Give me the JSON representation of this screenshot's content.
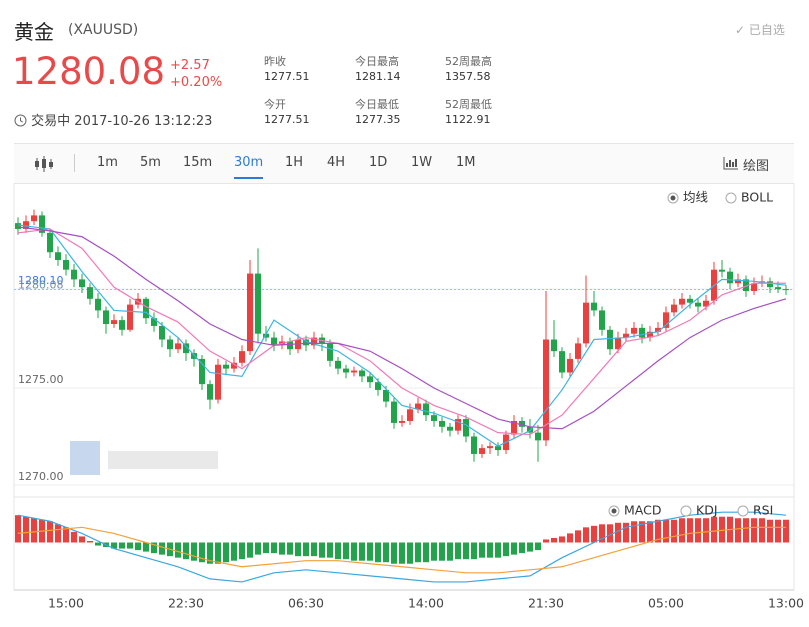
{
  "header": {
    "name": "黄金",
    "code": "(XAUUSD)",
    "price": 1280.08,
    "change": "+2.57",
    "change_pct": "+0.20%",
    "status": "交易中",
    "time": "2017-10-26 13:12:23",
    "watch": "已自选"
  },
  "stats": [
    {
      "label": "昨收",
      "value": 1277.51
    },
    {
      "label": "今日最高",
      "value": 1281.14
    },
    {
      "label": "52周最高",
      "value": 1357.58
    },
    {
      "label": "今开",
      "value": 1277.51
    },
    {
      "label": "今日最低",
      "value": 1277.35
    },
    {
      "label": "52周最低",
      "value": 1122.91
    }
  ],
  "toolbar": {
    "tabs": [
      "1m",
      "5m",
      "15m",
      "30m",
      "1H",
      "4H",
      "1D",
      "1W",
      "1M"
    ],
    "draw": "绘图"
  },
  "chart_data": {
    "type": "candlestick",
    "up_color": "#e8413f",
    "down_color": "#22a34c",
    "ylim": [
      1269.38,
      1285.57
    ],
    "yticks": [
      {
        "value": 1270,
        "label": "1270.00"
      },
      {
        "value": 1275,
        "label": "1275.00"
      },
      {
        "value": 1280.1,
        "label": "1280.10"
      }
    ],
    "price_line": {
      "value": 1280.08,
      "label": "1280.08"
    },
    "xticks": [
      {
        "index": 6,
        "label": "15:00"
      },
      {
        "index": 21,
        "label": "22:30"
      },
      {
        "index": 36,
        "label": "06:30"
      },
      {
        "index": 51,
        "label": "14:00"
      },
      {
        "index": 66,
        "label": "21:30"
      },
      {
        "index": 81,
        "label": "05:00"
      },
      {
        "index": 96,
        "label": "13:00"
      }
    ],
    "ohlc": [
      [
        1283.5,
        1283.8,
        1282.9,
        1283.2
      ],
      [
        1283.2,
        1283.9,
        1283.0,
        1283.6
      ],
      [
        1283.6,
        1284.2,
        1283.4,
        1283.9
      ],
      [
        1283.9,
        1284.1,
        1282.8,
        1283.0
      ],
      [
        1283.0,
        1283.2,
        1281.7,
        1282.0
      ],
      [
        1282.0,
        1282.3,
        1281.3,
        1281.6
      ],
      [
        1281.6,
        1281.9,
        1280.8,
        1281.1
      ],
      [
        1281.1,
        1281.4,
        1280.2,
        1280.6
      ],
      [
        1280.6,
        1280.9,
        1279.9,
        1280.2
      ],
      [
        1280.2,
        1280.4,
        1279.3,
        1279.6
      ],
      [
        1279.6,
        1279.9,
        1278.6,
        1279.0
      ],
      [
        1279.0,
        1279.2,
        1277.8,
        1278.3
      ],
      [
        1278.3,
        1278.8,
        1278.1,
        1278.5
      ],
      [
        1278.5,
        1278.7,
        1277.7,
        1278.0
      ],
      [
        1278.0,
        1279.6,
        1277.9,
        1279.3
      ],
      [
        1279.3,
        1279.9,
        1279.1,
        1279.6
      ],
      [
        1279.6,
        1279.7,
        1278.3,
        1278.6
      ],
      [
        1278.6,
        1278.9,
        1277.9,
        1278.2
      ],
      [
        1278.2,
        1278.4,
        1277.1,
        1277.5
      ],
      [
        1277.5,
        1277.7,
        1276.6,
        1277.0
      ],
      [
        1277.0,
        1277.6,
        1276.8,
        1277.3
      ],
      [
        1277.3,
        1277.5,
        1276.4,
        1276.8
      ],
      [
        1276.8,
        1277.0,
        1276.1,
        1276.5
      ],
      [
        1276.5,
        1276.7,
        1274.9,
        1275.2
      ],
      [
        1275.2,
        1275.4,
        1273.9,
        1274.4
      ],
      [
        1274.4,
        1276.5,
        1274.2,
        1276.2
      ],
      [
        1276.2,
        1276.4,
        1275.7,
        1276.0
      ],
      [
        1276.0,
        1276.6,
        1275.8,
        1276.3
      ],
      [
        1276.3,
        1277.2,
        1276.1,
        1276.9
      ],
      [
        1276.9,
        1281.6,
        1276.7,
        1280.9
      ],
      [
        1280.9,
        1282.2,
        1277.3,
        1277.8
      ],
      [
        1277.8,
        1278.2,
        1277.4,
        1277.6
      ],
      [
        1277.6,
        1277.9,
        1276.9,
        1277.2
      ],
      [
        1277.2,
        1277.7,
        1277.0,
        1277.4
      ],
      [
        1277.4,
        1277.6,
        1276.7,
        1277.0
      ],
      [
        1277.0,
        1277.8,
        1276.8,
        1277.5
      ],
      [
        1277.5,
        1277.7,
        1276.9,
        1277.2
      ],
      [
        1277.2,
        1277.9,
        1277.0,
        1277.6
      ],
      [
        1277.6,
        1277.8,
        1276.9,
        1277.3
      ],
      [
        1277.3,
        1277.5,
        1276.1,
        1276.4
      ],
      [
        1276.4,
        1276.6,
        1275.7,
        1276.0
      ],
      [
        1276.0,
        1276.2,
        1275.5,
        1275.8
      ],
      [
        1275.8,
        1276.1,
        1275.6,
        1275.9
      ],
      [
        1275.9,
        1276.0,
        1275.3,
        1275.6
      ],
      [
        1275.6,
        1275.8,
        1275.0,
        1275.3
      ],
      [
        1275.3,
        1275.5,
        1274.6,
        1274.9
      ],
      [
        1274.9,
        1275.1,
        1274.0,
        1274.3
      ],
      [
        1274.3,
        1274.5,
        1272.9,
        1273.2
      ],
      [
        1273.2,
        1273.6,
        1273.0,
        1273.3
      ],
      [
        1273.3,
        1274.2,
        1273.1,
        1273.9
      ],
      [
        1273.9,
        1274.5,
        1273.7,
        1274.2
      ],
      [
        1274.2,
        1274.4,
        1273.3,
        1273.6
      ],
      [
        1273.6,
        1273.8,
        1273.0,
        1273.3
      ],
      [
        1273.3,
        1273.5,
        1272.7,
        1273.0
      ],
      [
        1273.0,
        1273.2,
        1272.5,
        1272.8
      ],
      [
        1272.8,
        1273.6,
        1272.6,
        1273.4
      ],
      [
        1273.4,
        1273.6,
        1272.2,
        1272.5
      ],
      [
        1272.5,
        1272.7,
        1271.2,
        1271.6
      ],
      [
        1271.6,
        1272.1,
        1271.4,
        1271.9
      ],
      [
        1271.9,
        1272.2,
        1271.6,
        1272.0
      ],
      [
        1272.0,
        1272.2,
        1271.5,
        1271.8
      ],
      [
        1271.8,
        1272.8,
        1271.6,
        1272.6
      ],
      [
        1272.6,
        1273.6,
        1272.4,
        1273.3
      ],
      [
        1273.3,
        1273.5,
        1272.7,
        1273.0
      ],
      [
        1273.0,
        1273.4,
        1272.4,
        1272.7
      ],
      [
        1272.7,
        1273.1,
        1271.2,
        1272.3
      ],
      [
        1272.3,
        1280.0,
        1272.0,
        1277.5
      ],
      [
        1277.5,
        1278.5,
        1276.6,
        1276.9
      ],
      [
        1276.9,
        1277.1,
        1275.5,
        1275.8
      ],
      [
        1275.8,
        1276.8,
        1275.6,
        1276.5
      ],
      [
        1276.5,
        1277.6,
        1276.3,
        1277.3
      ],
      [
        1277.3,
        1280.8,
        1277.1,
        1279.4
      ],
      [
        1279.4,
        1280.0,
        1278.7,
        1279.0
      ],
      [
        1279.0,
        1279.2,
        1277.7,
        1278.0
      ],
      [
        1278.0,
        1278.2,
        1276.7,
        1277.0
      ],
      [
        1277.0,
        1277.9,
        1276.8,
        1277.6
      ],
      [
        1277.6,
        1278.1,
        1277.4,
        1277.8
      ],
      [
        1277.8,
        1278.4,
        1277.6,
        1278.1
      ],
      [
        1278.1,
        1278.3,
        1277.3,
        1277.6
      ],
      [
        1277.6,
        1278.2,
        1277.4,
        1277.9
      ],
      [
        1277.9,
        1278.4,
        1277.7,
        1278.1
      ],
      [
        1278.1,
        1279.2,
        1277.9,
        1278.9
      ],
      [
        1278.9,
        1279.6,
        1278.7,
        1279.3
      ],
      [
        1279.3,
        1279.9,
        1279.1,
        1279.6
      ],
      [
        1279.6,
        1279.8,
        1279.1,
        1279.4
      ],
      [
        1279.4,
        1279.6,
        1278.9,
        1279.2
      ],
      [
        1279.2,
        1279.8,
        1279.0,
        1279.5
      ],
      [
        1279.5,
        1281.5,
        1279.3,
        1281.1
      ],
      [
        1281.1,
        1281.6,
        1280.7,
        1281.0
      ],
      [
        1281.0,
        1281.2,
        1280.1,
        1280.4
      ],
      [
        1280.4,
        1280.9,
        1280.2,
        1280.6
      ],
      [
        1280.6,
        1280.8,
        1279.7,
        1280.0
      ],
      [
        1280.0,
        1280.7,
        1279.8,
        1280.4
      ],
      [
        1280.4,
        1280.8,
        1280.2,
        1280.5
      ],
      [
        1280.5,
        1280.7,
        1279.9,
        1280.2
      ],
      [
        1280.2,
        1280.5,
        1279.9,
        1280.1
      ],
      [
        1280.1,
        1280.3,
        1279.8,
        1280.08
      ]
    ],
    "overlay": {
      "options": [
        "均线",
        "BOLL"
      ],
      "series": [
        {
          "color": "#3cb6e0",
          "x": [
            0,
            4,
            8,
            12,
            16,
            20,
            24,
            28,
            32,
            36,
            40,
            44,
            48,
            52,
            56,
            60,
            64,
            68,
            72,
            76,
            80,
            84,
            88,
            92,
            96
          ],
          "values": [
            1283.4,
            1283.2,
            1281.0,
            1279.0,
            1278.9,
            1277.6,
            1275.8,
            1275.6,
            1278.5,
            1277.4,
            1276.9,
            1275.8,
            1274.1,
            1273.7,
            1273.1,
            1272.0,
            1272.8,
            1274.9,
            1277.5,
            1277.6,
            1277.9,
            1279.3,
            1280.6,
            1280.5,
            1280.3
          ]
        },
        {
          "color": "#f07ab9",
          "x": [
            0,
            4,
            8,
            12,
            16,
            20,
            24,
            28,
            32,
            36,
            40,
            44,
            48,
            52,
            56,
            60,
            64,
            68,
            72,
            76,
            80,
            84,
            88,
            92,
            96
          ],
          "values": [
            1283.0,
            1283.2,
            1282.2,
            1280.2,
            1279.2,
            1278.4,
            1276.9,
            1276.0,
            1277.2,
            1277.6,
            1277.3,
            1276.4,
            1275.0,
            1274.1,
            1273.5,
            1272.7,
            1272.6,
            1273.6,
            1275.5,
            1277.4,
            1277.7,
            1278.5,
            1279.8,
            1280.4,
            1280.4
          ]
        },
        {
          "color": "#a64fc2",
          "x": [
            0,
            4,
            8,
            12,
            16,
            20,
            24,
            28,
            32,
            36,
            40,
            44,
            48,
            52,
            56,
            60,
            64,
            68,
            72,
            76,
            80,
            84,
            88,
            92,
            96
          ],
          "values": [
            1283.3,
            1283.1,
            1282.8,
            1281.8,
            1280.6,
            1279.5,
            1278.3,
            1277.5,
            1277.2,
            1277.3,
            1277.3,
            1276.9,
            1276.0,
            1275.0,
            1274.2,
            1273.4,
            1273.0,
            1272.9,
            1273.8,
            1275.1,
            1276.4,
            1277.6,
            1278.5,
            1279.1,
            1279.6
          ]
        }
      ]
    },
    "indicator": {
      "options": [
        "MACD",
        "KDJ",
        "RSI"
      ],
      "ylim": [
        -1.5,
        1.5
      ],
      "histogram": [
        0.9,
        0.85,
        0.8,
        0.75,
        0.7,
        0.6,
        0.5,
        0.35,
        0.2,
        0.05,
        -0.1,
        -0.15,
        -0.2,
        -0.2,
        -0.2,
        -0.25,
        -0.3,
        -0.35,
        -0.4,
        -0.45,
        -0.5,
        -0.55,
        -0.6,
        -0.65,
        -0.7,
        -0.7,
        -0.65,
        -0.6,
        -0.55,
        -0.5,
        -0.4,
        -0.35,
        -0.35,
        -0.4,
        -0.4,
        -0.45,
        -0.45,
        -0.45,
        -0.5,
        -0.5,
        -0.55,
        -0.55,
        -0.6,
        -0.6,
        -0.6,
        -0.65,
        -0.65,
        -0.7,
        -0.7,
        -0.7,
        -0.65,
        -0.65,
        -0.6,
        -0.6,
        -0.6,
        -0.55,
        -0.55,
        -0.55,
        -0.5,
        -0.5,
        -0.5,
        -0.45,
        -0.4,
        -0.35,
        -0.3,
        -0.25,
        0.1,
        0.15,
        0.2,
        0.3,
        0.4,
        0.5,
        0.55,
        0.6,
        0.6,
        0.65,
        0.65,
        0.7,
        0.7,
        0.7,
        0.75,
        0.75,
        0.75,
        0.8,
        0.8,
        0.8,
        0.8,
        0.85,
        0.85,
        0.85,
        0.8,
        0.8,
        0.8,
        0.8,
        0.75,
        0.75,
        0.75
      ],
      "lines": [
        {
          "color": "#3aa7df",
          "x": [
            0,
            4,
            8,
            12,
            16,
            20,
            24,
            28,
            32,
            36,
            40,
            44,
            48,
            52,
            56,
            60,
            64,
            68,
            72,
            76,
            80,
            84,
            88,
            92,
            96
          ],
          "values": [
            0.9,
            0.7,
            0.3,
            -0.2,
            -0.5,
            -0.8,
            -1.2,
            -1.3,
            -1.0,
            -0.9,
            -1.0,
            -1.1,
            -1.2,
            -1.3,
            -1.3,
            -1.2,
            -1.1,
            -0.5,
            0.0,
            0.5,
            0.7,
            0.9,
            1.0,
            1.0,
            0.9
          ]
        },
        {
          "color": "#f2a23a",
          "x": [
            0,
            4,
            8,
            12,
            16,
            20,
            24,
            28,
            32,
            36,
            40,
            44,
            48,
            52,
            56,
            60,
            64,
            68,
            72,
            76,
            80,
            84,
            88,
            92,
            96
          ],
          "values": [
            0.3,
            0.4,
            0.5,
            0.3,
            0.0,
            -0.3,
            -0.6,
            -0.8,
            -0.7,
            -0.6,
            -0.6,
            -0.7,
            -0.8,
            -0.9,
            -1.0,
            -1.0,
            -0.9,
            -0.8,
            -0.5,
            -0.2,
            0.1,
            0.3,
            0.4,
            0.5,
            0.5
          ]
        }
      ]
    }
  }
}
